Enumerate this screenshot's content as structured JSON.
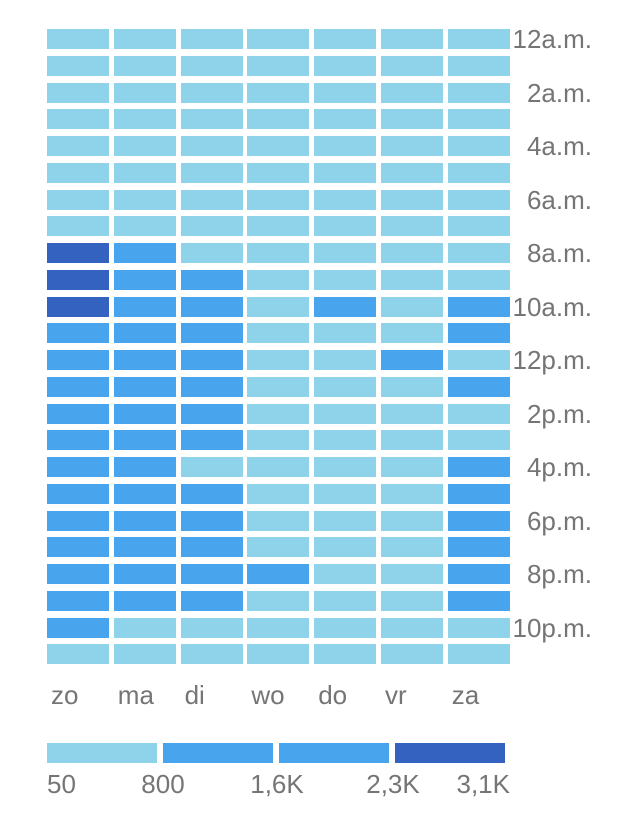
{
  "page": {
    "background": "#ffffff",
    "text_color": "#757575"
  },
  "chart_data": {
    "type": "heatmap",
    "title": "",
    "x_categories": [
      "zo",
      "ma",
      "di",
      "wo",
      "do",
      "vr",
      "za"
    ],
    "y_ticks": [
      {
        "row": 0,
        "label": "12a.m."
      },
      {
        "row": 2,
        "label": "2a.m."
      },
      {
        "row": 4,
        "label": "4a.m."
      },
      {
        "row": 6,
        "label": "6a.m."
      },
      {
        "row": 8,
        "label": "8a.m."
      },
      {
        "row": 10,
        "label": "10a.m."
      },
      {
        "row": 12,
        "label": "12p.m."
      },
      {
        "row": 14,
        "label": "2p.m."
      },
      {
        "row": 16,
        "label": "4p.m."
      },
      {
        "row": 18,
        "label": "6p.m."
      },
      {
        "row": 20,
        "label": "8p.m."
      },
      {
        "row": 22,
        "label": "10p.m."
      }
    ],
    "matrix": [
      "LLLLLLL",
      "LLLLLLL",
      "LLLLLLL",
      "LLLLLLL",
      "LLLLLLL",
      "LLLLLLL",
      "LLLLLLL",
      "LLLLLLL",
      "DMLLLLL",
      "DMMLLLL",
      "DMMLMLM",
      "MMMLLLM",
      "MMMLLML",
      "MMMLLLM",
      "MMMLLLL",
      "MMMLLLL",
      "MMLLLLM",
      "MMMLLLM",
      "MMMLLLM",
      "MMMLLLM",
      "MMMMLLM",
      "MMMLLLM",
      "MLLLLLL",
      "LLLLLLL"
    ],
    "palette": {
      "L": "#8ed3ea",
      "M": "#49a4ee",
      "D": "#3462c1"
    },
    "legend": {
      "swatch_colors": [
        "#8ed3ea",
        "#49a4ee",
        "#49a4ee",
        "#3462c1"
      ],
      "labels": [
        "50",
        "800",
        "1,6K",
        "2,3K",
        "3,1K"
      ]
    }
  }
}
